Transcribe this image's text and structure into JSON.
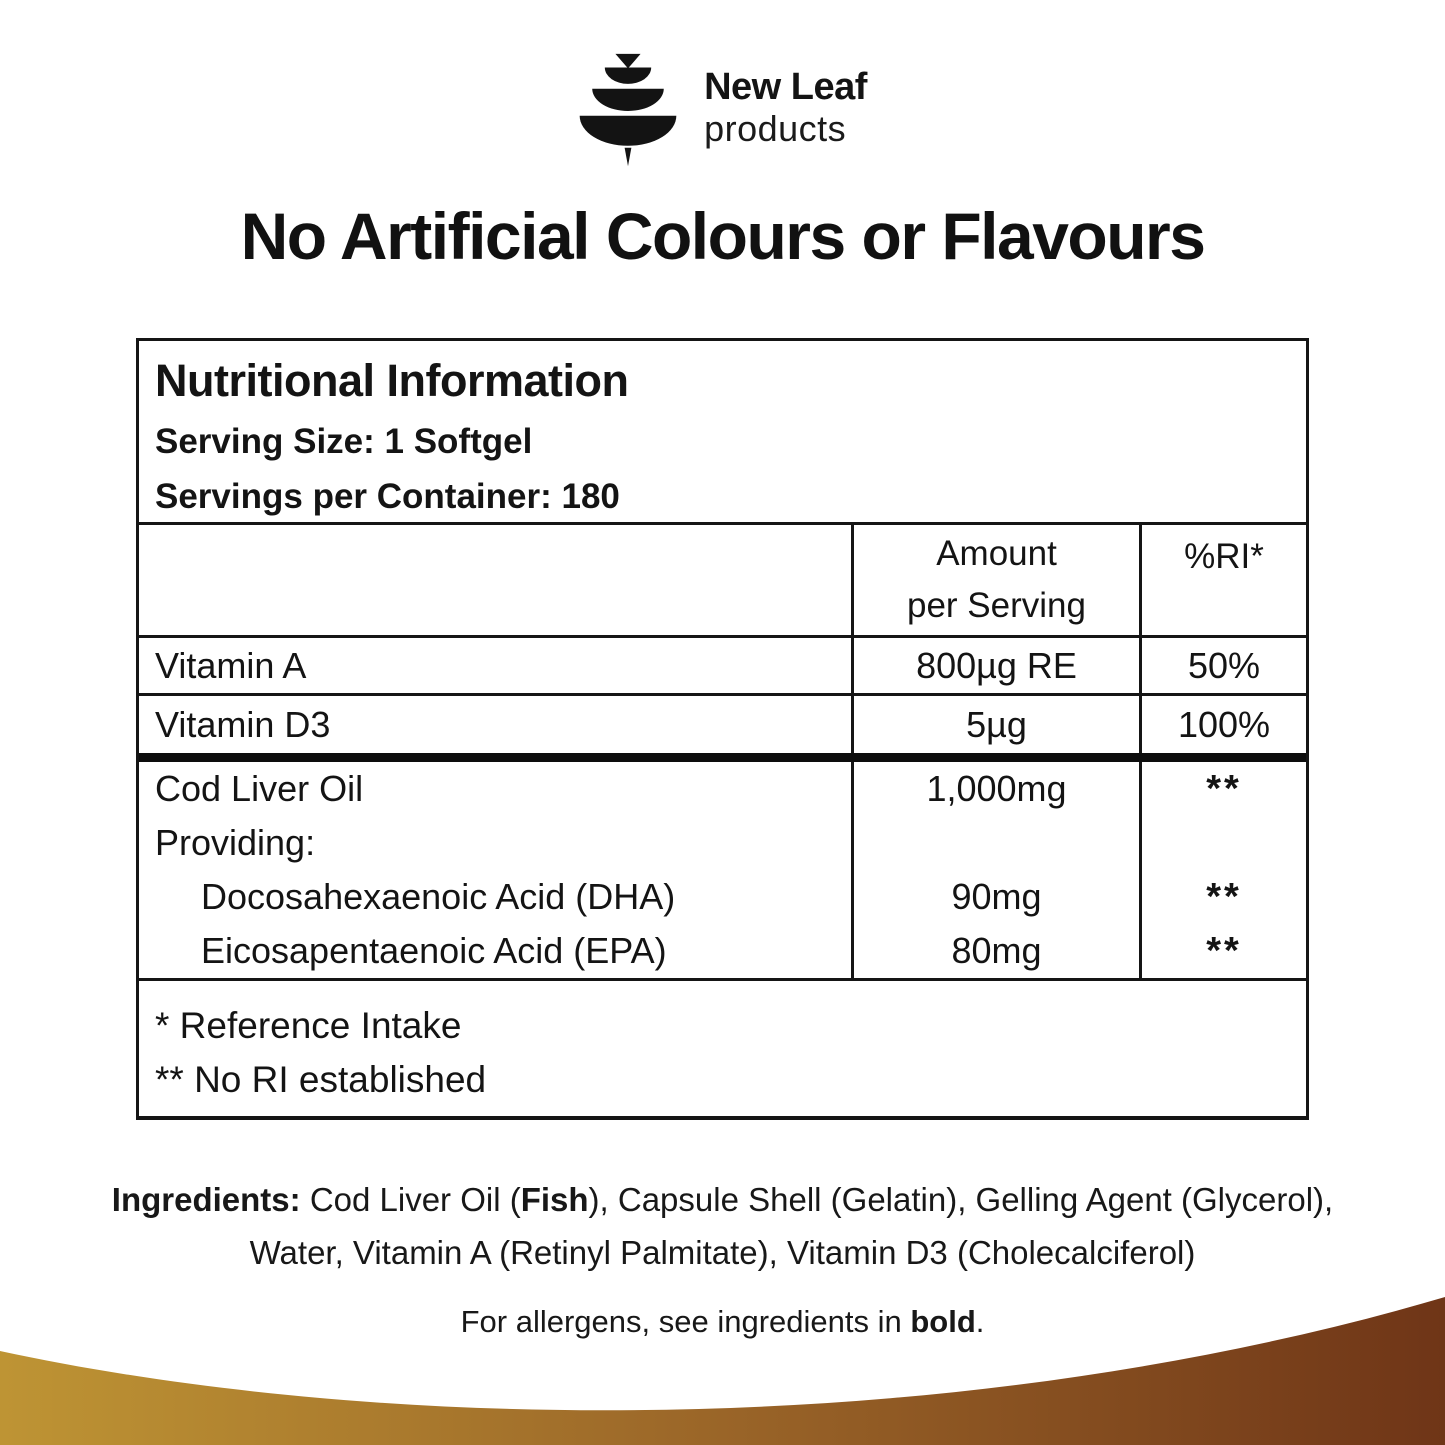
{
  "brand": {
    "name": "New Leaf",
    "subtitle": "products"
  },
  "headline": "No Artificial Colours or Flavours",
  "nutrition": {
    "title": "Nutritional Information",
    "serving_size": "Serving Size: 1 Softgel",
    "servings_per_container": "Servings per Container: 180",
    "columns": {
      "amount_line1": "Amount",
      "amount_line2": "per Serving",
      "ri": "%RI*"
    },
    "rows": [
      {
        "name": "Vitamin A",
        "amount": "800µg RE",
        "ri": "50%"
      },
      {
        "name": "Vitamin D3",
        "amount": "5µg",
        "ri": "100%"
      }
    ],
    "group": {
      "name": "Cod Liver Oil",
      "amount": "1,000mg",
      "ri": "**",
      "providing_label": "Providing:",
      "items": [
        {
          "name": "Docosahexaenoic Acid (DHA)",
          "amount": "90mg",
          "ri": "**"
        },
        {
          "name": "Eicosapentaenoic Acid (EPA)",
          "amount": "80mg",
          "ri": "**"
        }
      ]
    },
    "footnotes": [
      "* Reference Intake",
      "** No RI established"
    ]
  },
  "ingredients": {
    "segments": [
      {
        "t": "Ingredients: ",
        "b": true
      },
      {
        "t": "Cod Liver Oil (",
        "b": false
      },
      {
        "t": "Fish",
        "b": true
      },
      {
        "t": "), Capsule Shell (Gelatin), Gelling Agent (Glycerol), Water, Vitamin A (Retinyl Palmitate), Vitamin D3 (Cholecalciferol)",
        "b": false
      }
    ]
  },
  "allergen": {
    "segments": [
      {
        "t": "For allergens, see ingredients in ",
        "b": false
      },
      {
        "t": "bold",
        "b": true
      },
      {
        "t": ".",
        "b": false
      }
    ]
  },
  "band": {
    "left": "#BE9434",
    "mid": "#9A6528",
    "right": "#6F3517"
  }
}
